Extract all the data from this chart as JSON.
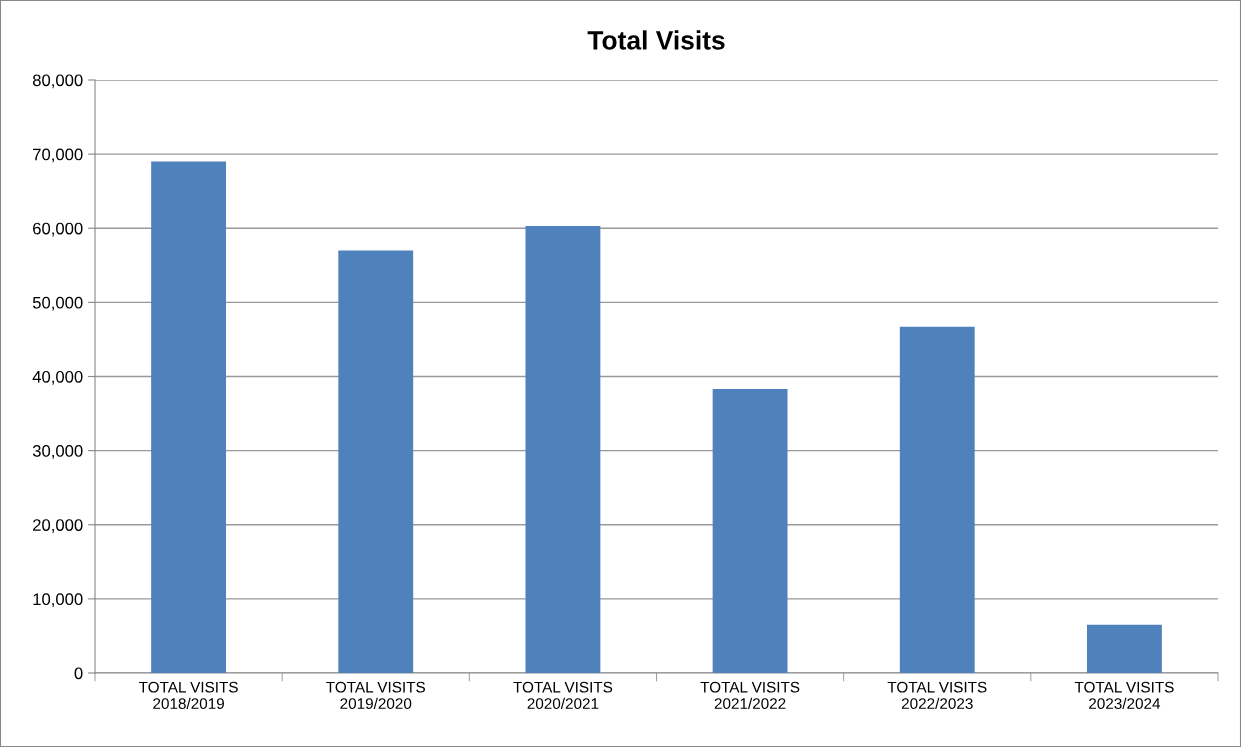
{
  "chart_data": {
    "type": "bar",
    "title": "Total Visits",
    "categories": [
      "TOTAL VISITS\n2018/2019",
      "TOTAL VISITS\n2019/2020",
      "TOTAL VISITS\n2020/2021",
      "TOTAL VISITS\n2021/2022",
      "TOTAL VISITS\n2022/2023",
      "TOTAL VISITS\n2023/2024"
    ],
    "values": [
      69000,
      57000,
      60300,
      38300,
      46700,
      6500
    ],
    "color": "#4f81bd",
    "ylim": [
      0,
      80000
    ],
    "yticks": [
      {
        "value": 0,
        "label": "0"
      },
      {
        "value": 10000,
        "label": "10,000"
      },
      {
        "value": 20000,
        "label": "20,000"
      },
      {
        "value": 30000,
        "label": "30,000"
      },
      {
        "value": 40000,
        "label": "40,000"
      },
      {
        "value": 50000,
        "label": "50,000"
      },
      {
        "value": 60000,
        "label": "60,000"
      },
      {
        "value": 70000,
        "label": "70,000"
      },
      {
        "value": 80000,
        "label": "80,000"
      }
    ],
    "grid": "y"
  }
}
